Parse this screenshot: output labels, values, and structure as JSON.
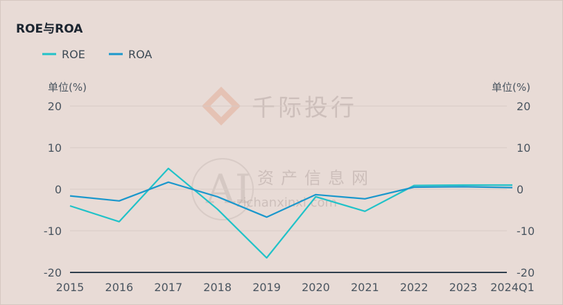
{
  "chart_data": {
    "type": "line",
    "title": "ROE与ROA",
    "categories": [
      "2015",
      "2016",
      "2017",
      "2018",
      "2019",
      "2020",
      "2021",
      "2022",
      "2023",
      "2024Q1"
    ],
    "series": [
      {
        "name": "ROE",
        "color": "#20c2c8",
        "values": [
          -4.0,
          -7.8,
          5.0,
          -4.8,
          -16.5,
          -1.8,
          -5.3,
          0.9,
          1.0,
          1.0
        ]
      },
      {
        "name": "ROA",
        "color": "#1a97cc",
        "values": [
          -1.6,
          -2.8,
          1.7,
          -1.8,
          -6.7,
          -1.3,
          -2.3,
          0.5,
          0.6,
          0.4
        ]
      }
    ],
    "ylim": [
      -20,
      20
    ],
    "yticks": [
      20,
      10,
      0,
      -10,
      -20
    ],
    "left_unit": "单位(%)",
    "right_unit": "单位(%)",
    "legend_position": "top-left",
    "grid": true,
    "grid_color": "#d8cbc6",
    "axis_color": "#2f3e4c"
  },
  "watermark": {
    "brand_text": "千际投行",
    "site_text": "资产信息网",
    "url_text": "zichanxinxi.com",
    "logo_text": "AI"
  }
}
